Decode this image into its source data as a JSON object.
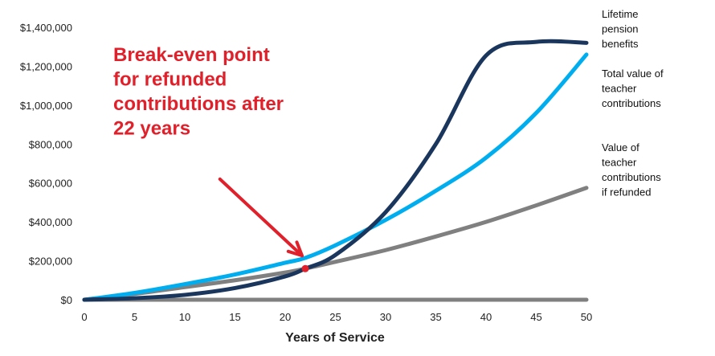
{
  "chart_data": {
    "type": "line",
    "xlabel": "Years of Service",
    "ylabel": "",
    "xlim": [
      0,
      50
    ],
    "ylim": [
      0,
      1400000
    ],
    "x_ticks": [
      "0",
      "5",
      "10",
      "15",
      "20",
      "25",
      "30",
      "35",
      "40",
      "45",
      "50"
    ],
    "y_ticks": [
      "$0",
      "$200,000",
      "$400,000",
      "$600,000",
      "$800,000",
      "$1,000,000",
      "$1,200,000",
      "$1,400,000"
    ],
    "grid": false,
    "legend_placement": "right",
    "series": [
      {
        "name": "Lifetime pension benefits",
        "label_lines": [
          "Lifetime",
          "pension",
          "benefits"
        ],
        "color": "#1b365d",
        "x": [
          0,
          5,
          10,
          15,
          20,
          22,
          25,
          30,
          35,
          40,
          45,
          50
        ],
        "y": [
          0,
          8000,
          25000,
          60000,
          120000,
          160000,
          230000,
          450000,
          800000,
          1255000,
          1325000,
          1320000
        ]
      },
      {
        "name": "Total value of teacher contributions",
        "label_lines": [
          "Total value of",
          "teacher",
          "contributions"
        ],
        "color": "#00aeef",
        "x": [
          0,
          5,
          10,
          15,
          20,
          22,
          25,
          30,
          35,
          40,
          45,
          50
        ],
        "y": [
          0,
          35000,
          80000,
          130000,
          190000,
          215000,
          280000,
          410000,
          560000,
          730000,
          960000,
          1260000
        ]
      },
      {
        "name": "Value of teacher contributions if refunded",
        "label_lines": [
          "Value of",
          "teacher",
          "contributions",
          "if refunded"
        ],
        "color": "#808080",
        "x": [
          0,
          5,
          10,
          15,
          20,
          22,
          25,
          30,
          35,
          40,
          45,
          50
        ],
        "y": [
          0,
          30000,
          65000,
          100000,
          140000,
          160000,
          195000,
          255000,
          325000,
          400000,
          485000,
          575000
        ]
      },
      {
        "name": "$0 baseline",
        "label_lines": [],
        "color": "#808080",
        "x": [
          0,
          50
        ],
        "y": [
          0,
          0
        ]
      }
    ],
    "annotation": {
      "text_lines": [
        "Break-even point",
        "for refunded",
        "contributions after",
        "22 years"
      ],
      "color": "#e0202a",
      "point": {
        "x": 22,
        "y": 160000
      },
      "arrow_from": {
        "x": 13.5,
        "y": 620000
      },
      "arrow_to": {
        "x": 22,
        "y": 210000
      }
    }
  }
}
